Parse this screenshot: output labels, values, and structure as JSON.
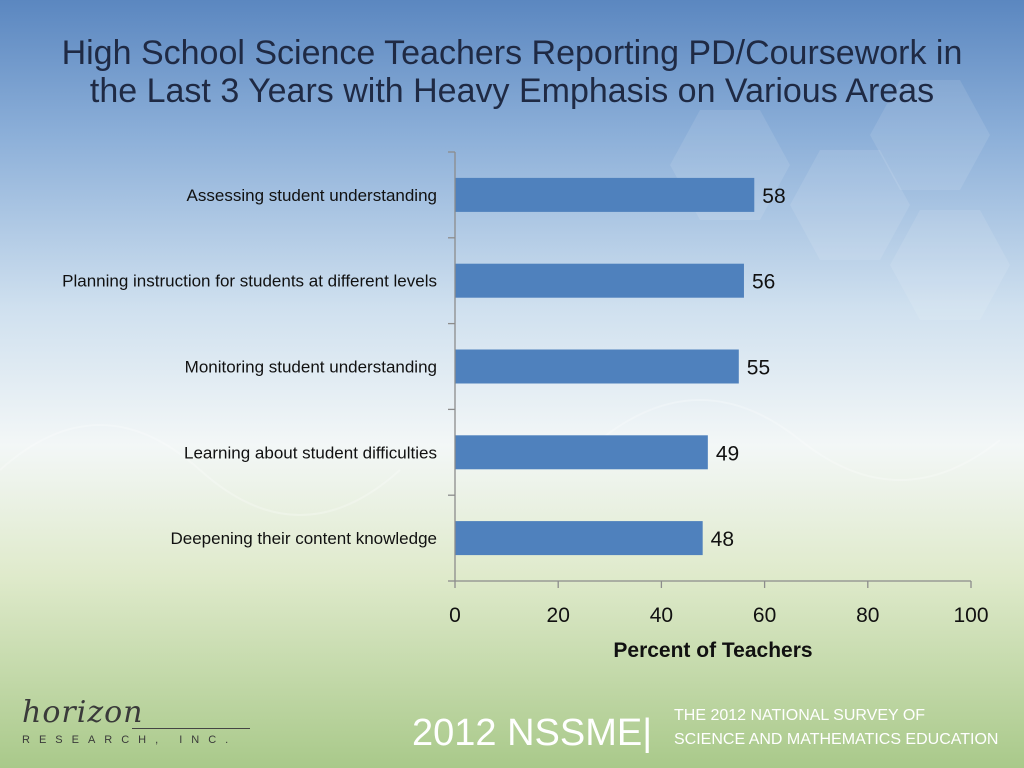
{
  "header": {
    "title": "High School Science Teachers Reporting PD/Coursework in the Last 3 Years with Heavy Emphasis on Various Areas"
  },
  "chart_data": {
    "type": "bar",
    "orientation": "horizontal",
    "title": "High School Science Teachers Reporting PD/Coursework in the Last 3 Years with Heavy Emphasis on Various Areas",
    "categories": [
      "Assessing student understanding",
      "Planning instruction for students at different levels",
      "Monitoring student understanding",
      "Learning about student difficulties",
      "Deepening their content knowledge"
    ],
    "values": [
      58,
      56,
      55,
      49,
      48
    ],
    "xlabel": "Percent of Teachers",
    "ylabel": "",
    "xlim": [
      0,
      100
    ],
    "xticks": [
      0,
      20,
      40,
      60,
      80,
      100
    ],
    "bar_color": "#4f81bd",
    "grid": false,
    "data_labels": true
  },
  "footer": {
    "logo_script": "horizon",
    "logo_sub": "RESEARCH, INC.",
    "survey_short": "2012 NSSME|",
    "survey_line1": "THE 2012 NATIONAL SURVEY OF",
    "survey_line2": "SCIENCE AND MATHEMATICS EDUCATION"
  }
}
